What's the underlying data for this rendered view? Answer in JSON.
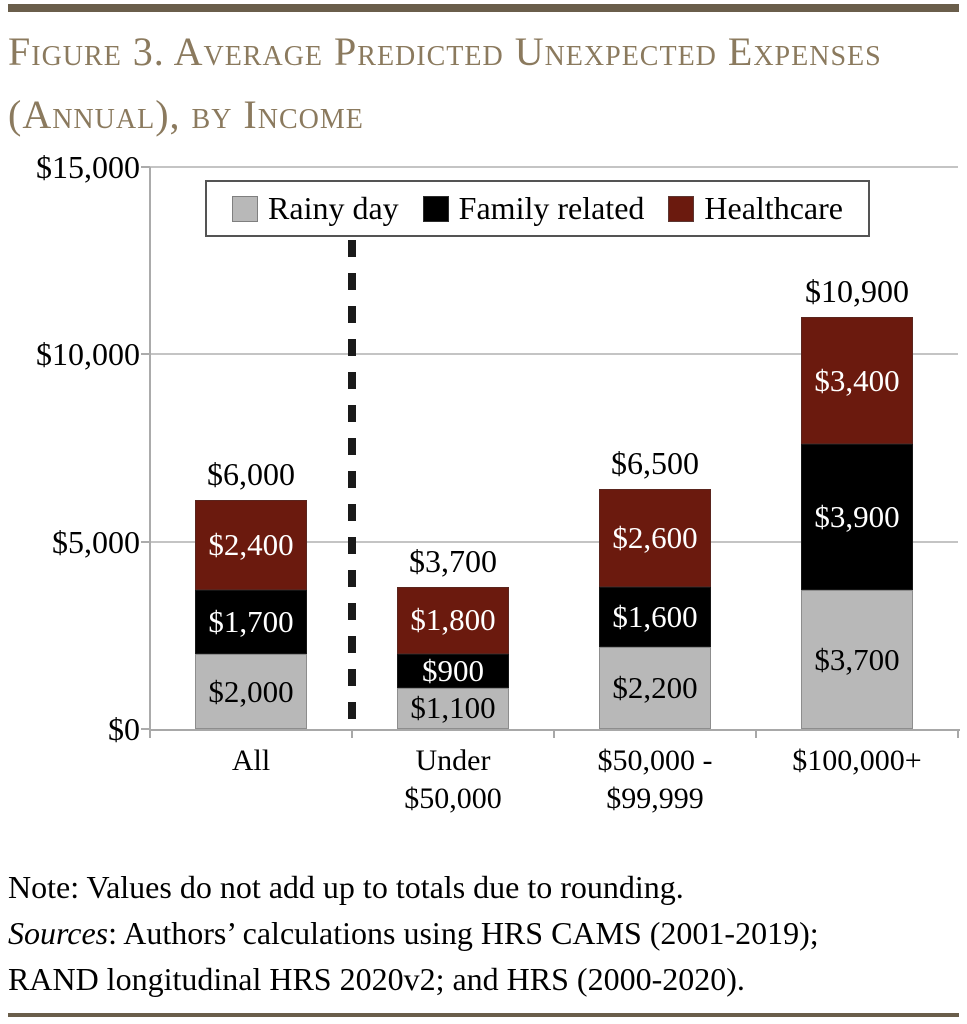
{
  "page": {
    "title_lines": [
      "Figure 3. Average Predicted Unexpected Expenses",
      "(Annual), by Income"
    ]
  },
  "chart_data": {
    "type": "bar",
    "stacked": true,
    "title": "Figure 3. Average Predicted Unexpected Expenses (Annual), by Income",
    "categories": [
      "All",
      "Under\n$50,000",
      "$50,000 -\n$99,999",
      "$100,000+"
    ],
    "series": [
      {
        "name": "Rainy day",
        "color": "#b8b8b8",
        "label_color": "#000000",
        "values": [
          2000,
          1100,
          2200,
          3700
        ]
      },
      {
        "name": "Family related",
        "color": "#000000",
        "label_color": "#ffffff",
        "values": [
          1700,
          900,
          1600,
          3900
        ]
      },
      {
        "name": "Healthcare",
        "color": "#6b1a0e",
        "label_color": "#ffffff",
        "values": [
          2400,
          1800,
          2600,
          3400
        ]
      }
    ],
    "totals": [
      6000,
      3700,
      6500,
      10900
    ],
    "y_ticks": [
      0,
      5000,
      10000,
      15000
    ],
    "ylim": [
      0,
      15000
    ],
    "value_prefix": "$",
    "grid": true,
    "legend_position": "top-inside",
    "divider_after_category_index": 0
  },
  "notes": {
    "note_line": "Note: Values do not add up to totals due to rounding.",
    "sources_word": "Sources",
    "sources_rest": ": Authors’ calculations using HRS CAMS (2001-2019);",
    "sources_line2": "RAND longitudinal HRS 2020v2; and HRS (2000-2020)."
  },
  "colors": {
    "rule": "#6a5e4b",
    "title": "#8b7a5e",
    "gridline": "#c4c4c4",
    "axis": "#a8a8a8",
    "divider": "#1a1a1a"
  }
}
